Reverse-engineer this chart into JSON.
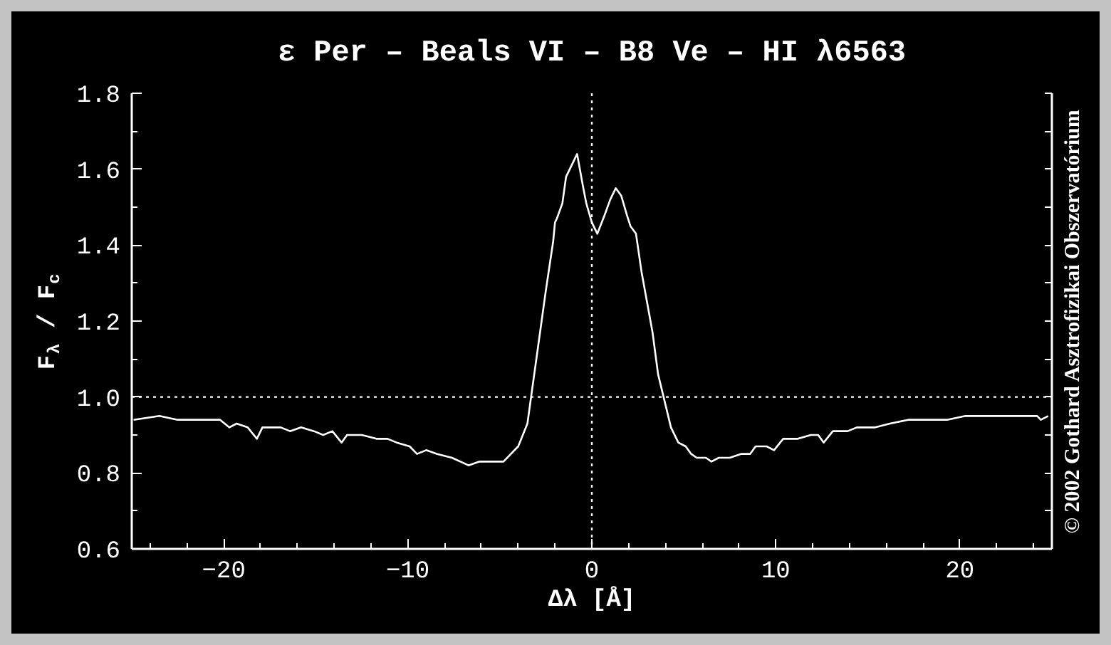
{
  "chart_data": {
    "type": "line",
    "title": "ε Per – Beals VI – B8 Ve – HI λ6563",
    "xlabel": "Δλ [Å]",
    "ylabel": "F$_{λ}$ / F$_{c}$",
    "annotations": [
      "© 2002 Gothard Asztrofizikai Obszervatórium"
    ],
    "xlim": [
      -25,
      25
    ],
    "ylim": [
      0.6,
      1.8
    ],
    "xticks": [
      {
        "value": -20,
        "label": "−20"
      },
      {
        "value": -10,
        "label": "−10"
      },
      0,
      10,
      20
    ],
    "yticks": [
      0.6,
      0.8,
      {
        "value": 1.0,
        "label": "1.0"
      },
      1.2,
      1.4,
      1.6,
      1.8
    ],
    "ref_lines": [
      {
        "axis": "y",
        "value": 1.0,
        "color": "#ffffff",
        "line_style": "dotted"
      },
      {
        "axis": "x",
        "value": 0,
        "color": "#ffffff",
        "line_style": "dotted"
      }
    ],
    "x": [
      -24.9,
      -23.5,
      -22.5,
      -22.0,
      -21.5,
      -20.8,
      -20.2,
      -19.7,
      -19.3,
      -18.7,
      -18.2,
      -17.9,
      -16.9,
      -16.4,
      -15.8,
      -15.1,
      -14.6,
      -14.1,
      -13.6,
      -13.3,
      -12.5,
      -11.7,
      -11.1,
      -10.6,
      -9.9,
      -9.5,
      -9.0,
      -8.4,
      -7.6,
      -6.7,
      -6.1,
      -5.3,
      -4.8,
      -4.0,
      -3.5,
      -3.3,
      -2.9,
      -2.5,
      -2.1,
      -2.0,
      -1.9,
      -1.6,
      -1.4,
      -0.8,
      -0.5,
      -0.3,
      0.0,
      0.3,
      0.7,
      1.0,
      1.3,
      1.6,
      1.9,
      2.1,
      2.4,
      2.7,
      3.3,
      3.6,
      3.9,
      4.3,
      4.7,
      5.1,
      5.4,
      5.7,
      6.2,
      6.5,
      6.9,
      7.5,
      8.1,
      8.6,
      8.9,
      9.5,
      9.9,
      10.4,
      11.2,
      11.9,
      12.3,
      12.6,
      13.1,
      13.9,
      14.4,
      15.4,
      16.2,
      17.2,
      18.3,
      19.3,
      20.3,
      21.8,
      23.1,
      24.2,
      24.4,
      24.8
    ],
    "series": [
      {
        "color": "#ffffff",
        "values": [
          0.94,
          0.95,
          0.94,
          0.94,
          0.94,
          0.94,
          0.94,
          0.92,
          0.93,
          0.92,
          0.89,
          0.92,
          0.92,
          0.91,
          0.92,
          0.91,
          0.9,
          0.91,
          0.88,
          0.9,
          0.9,
          0.89,
          0.89,
          0.88,
          0.87,
          0.85,
          0.86,
          0.85,
          0.84,
          0.82,
          0.83,
          0.83,
          0.83,
          0.87,
          0.93,
          1.0,
          1.14,
          1.28,
          1.41,
          1.46,
          1.47,
          1.51,
          1.58,
          1.64,
          1.56,
          1.51,
          1.46,
          1.43,
          1.48,
          1.52,
          1.55,
          1.53,
          1.48,
          1.45,
          1.43,
          1.33,
          1.17,
          1.06,
          1.0,
          0.92,
          0.88,
          0.87,
          0.85,
          0.84,
          0.84,
          0.83,
          0.84,
          0.84,
          0.85,
          0.85,
          0.87,
          0.87,
          0.86,
          0.89,
          0.89,
          0.9,
          0.9,
          0.88,
          0.91,
          0.91,
          0.92,
          0.92,
          0.93,
          0.94,
          0.94,
          0.94,
          0.95,
          0.95,
          0.95,
          0.95,
          0.94,
          0.95
        ]
      }
    ]
  }
}
